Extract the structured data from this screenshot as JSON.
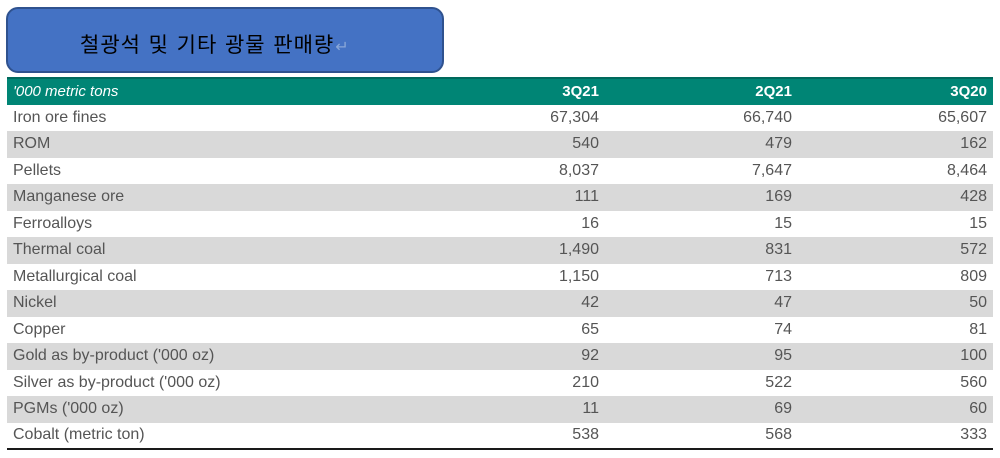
{
  "title": {
    "text": "철광석 및 기타 광물 판매량",
    "paragraph_mark": "↵"
  },
  "table": {
    "unit_label": "'000 metric tons",
    "columns": [
      "3Q21",
      "2Q21",
      "3Q20"
    ],
    "rows": [
      {
        "label": "Iron ore fines",
        "values": [
          "67,304",
          "66,740",
          "65,607"
        ]
      },
      {
        "label": "ROM",
        "values": [
          "540",
          "479",
          "162"
        ]
      },
      {
        "label": "Pellets",
        "values": [
          "8,037",
          "7,647",
          "8,464"
        ]
      },
      {
        "label": "Manganese ore",
        "values": [
          "111",
          "169",
          "428"
        ]
      },
      {
        "label": "Ferroalloys",
        "values": [
          "16",
          "15",
          "15"
        ]
      },
      {
        "label": "Thermal coal",
        "values": [
          "1,490",
          "831",
          "572"
        ]
      },
      {
        "label": "Metallurgical coal",
        "values": [
          "1,150",
          "713",
          "809"
        ]
      },
      {
        "label": "Nickel",
        "values": [
          "42",
          "47",
          "50"
        ]
      },
      {
        "label": "Copper",
        "values": [
          "65",
          "74",
          "81"
        ]
      },
      {
        "label": "Gold as by-product ('000 oz)",
        "values": [
          "92",
          "95",
          "100"
        ]
      },
      {
        "label": "Silver as by-product ('000 oz)",
        "values": [
          "210",
          "522",
          "560"
        ]
      },
      {
        "label": "PGMs ('000 oz)",
        "values": [
          "11",
          "69",
          "60"
        ]
      },
      {
        "label": "Cobalt (metric ton)",
        "values": [
          "538",
          "568",
          "333"
        ]
      }
    ]
  },
  "colors": {
    "title_box": "#4472c4",
    "header_row": "#008575",
    "stripe": "#d9d9d9"
  }
}
